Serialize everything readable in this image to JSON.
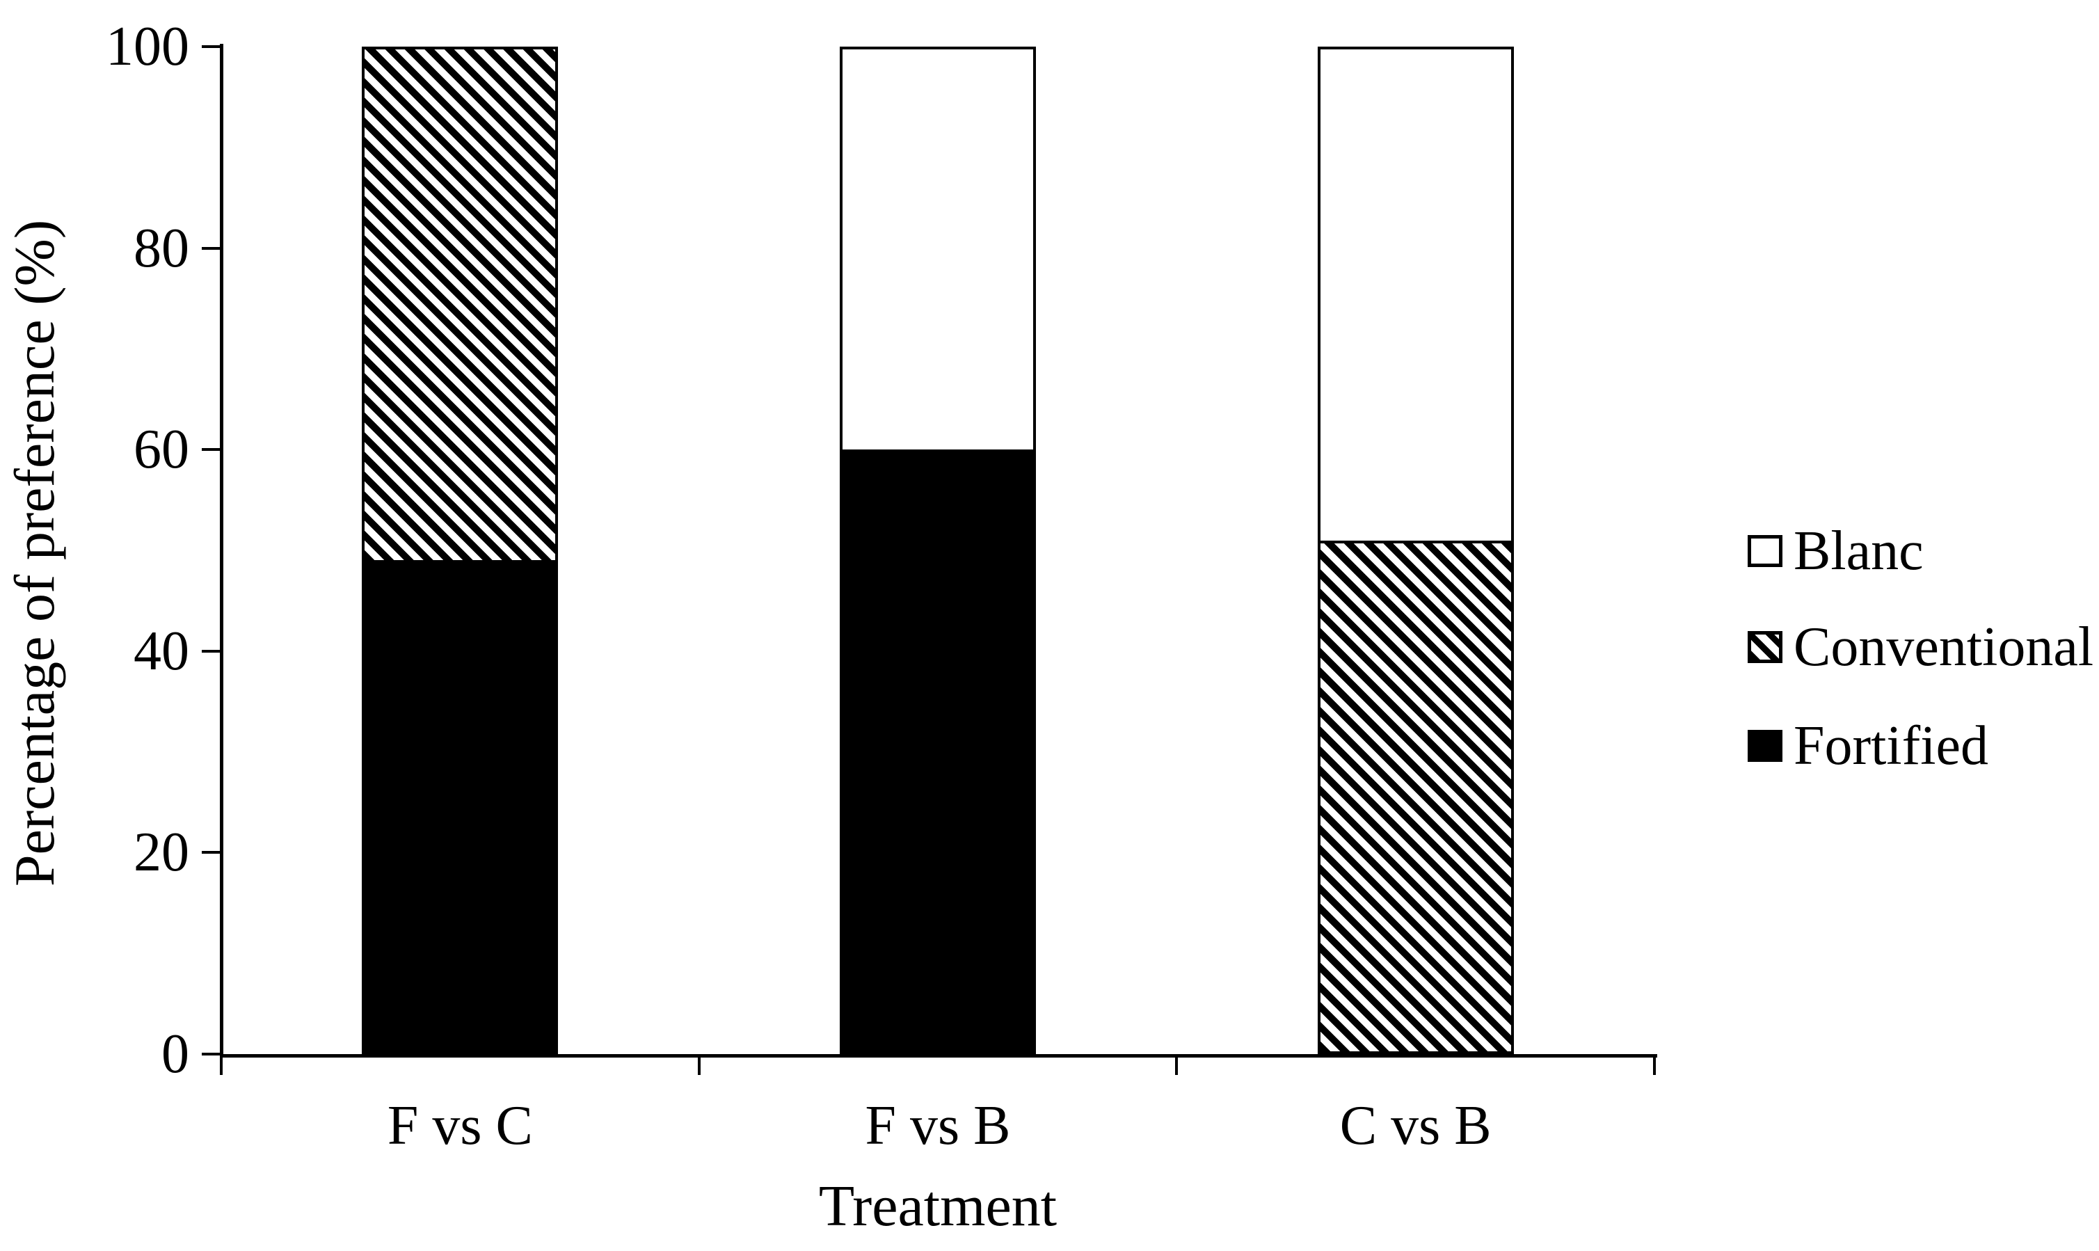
{
  "figure": {
    "background": "#ffffff"
  },
  "chart_data": {
    "type": "bar",
    "subtype": "stacked-column",
    "title": "",
    "xlabel": "Treatment",
    "ylabel": "Percentage of preference (%)",
    "categories": [
      "F vs C",
      "F vs B",
      "C vs B"
    ],
    "series": [
      {
        "name": "Fortified",
        "pattern": "solid-black",
        "values": [
          49,
          60,
          0
        ]
      },
      {
        "name": "Conventional",
        "pattern": "diagonal-hatch",
        "values": [
          51,
          0,
          51
        ]
      },
      {
        "name": "Blanc",
        "pattern": "white",
        "values": [
          0,
          40,
          49
        ]
      }
    ],
    "stack_order": [
      "Fortified",
      "Conventional",
      "Blanc"
    ],
    "ylim": [
      0,
      100
    ],
    "y_ticks": [
      "0",
      "20",
      "40",
      "60",
      "80",
      "100"
    ],
    "grid": "off",
    "legend": {
      "position": "right",
      "entries": [
        "Blanc",
        "Conventional",
        "Fortified"
      ]
    },
    "colors": {
      "foreground": "#000000",
      "background": "#ffffff"
    }
  }
}
